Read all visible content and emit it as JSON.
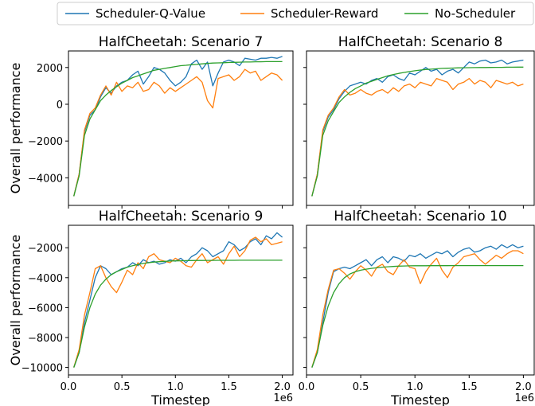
{
  "legend": [
    {
      "name": "Scheduler-Q-Value",
      "color": "#1f77b4"
    },
    {
      "name": "Scheduler-Reward",
      "color": "#ff7f0e"
    },
    {
      "name": "No-Scheduler",
      "color": "#2ca02c"
    }
  ],
  "chart_data": [
    {
      "type": "line",
      "title": "HalfCheetah: Scenario 7",
      "ylabel": "Overall performance",
      "xlabel": "",
      "xlim": [
        0,
        2.1
      ],
      "ylim": [
        -5500,
        2900
      ],
      "yticks": [
        -4000,
        -2000,
        0,
        2000
      ],
      "ytick_labels": [
        "−4000",
        "−2000",
        "0",
        "2000"
      ],
      "xticks": [
        0.0,
        0.5,
        1.0,
        1.5,
        2.0
      ],
      "xtick_labels": [],
      "x": [
        0.05,
        0.1,
        0.15,
        0.2,
        0.25,
        0.3,
        0.35,
        0.4,
        0.45,
        0.5,
        0.55,
        0.6,
        0.65,
        0.7,
        0.75,
        0.8,
        0.85,
        0.9,
        0.95,
        1.0,
        1.05,
        1.1,
        1.15,
        1.2,
        1.25,
        1.3,
        1.35,
        1.4,
        1.45,
        1.5,
        1.55,
        1.6,
        1.65,
        1.7,
        1.75,
        1.8,
        1.85,
        1.9,
        1.95,
        2.0
      ],
      "series": [
        {
          "name": "Scheduler-Q-Value",
          "values": [
            -5000,
            -3800,
            -1500,
            -600,
            -300,
            400,
            900,
            600,
            1000,
            1200,
            1300,
            1600,
            1800,
            1100,
            1500,
            2000,
            1900,
            1700,
            1300,
            1000,
            1200,
            1500,
            2200,
            2400,
            1900,
            2300,
            1000,
            1700,
            2300,
            2400,
            2300,
            2100,
            2500,
            2450,
            2400,
            2500,
            2500,
            2550,
            2500,
            2600
          ]
        },
        {
          "name": "Scheduler-Reward",
          "values": [
            -5000,
            -3800,
            -1400,
            -500,
            -200,
            500,
            1000,
            500,
            1200,
            700,
            1000,
            900,
            1200,
            700,
            800,
            1200,
            1000,
            600,
            900,
            700,
            900,
            1100,
            1300,
            1500,
            1200,
            200,
            -200,
            1400,
            1500,
            1600,
            1300,
            1500,
            1900,
            1700,
            1800,
            1300,
            1500,
            1700,
            1600,
            1300
          ]
        },
        {
          "name": "No-Scheduler",
          "values": [
            -5000,
            -3900,
            -1700,
            -800,
            -300,
            200,
            500,
            750,
            950,
            1150,
            1300,
            1450,
            1550,
            1650,
            1750,
            1850,
            1900,
            1950,
            2000,
            2050,
            2100,
            2120,
            2150,
            2170,
            2200,
            2220,
            2240,
            2250,
            2260,
            2270,
            2280,
            2290,
            2300,
            2300,
            2310,
            2310,
            2320,
            2320,
            2320,
            2320
          ]
        }
      ]
    },
    {
      "type": "line",
      "title": "HalfCheetah: Scenario 8",
      "ylabel": "",
      "xlabel": "",
      "xlim": [
        0,
        2.1
      ],
      "ylim": [
        -5500,
        2900
      ],
      "yticks": [
        -4000,
        -2000,
        0,
        2000
      ],
      "ytick_labels": [],
      "xticks": [
        0.0,
        0.5,
        1.0,
        1.5,
        2.0
      ],
      "xtick_labels": [],
      "x": [
        0.05,
        0.1,
        0.15,
        0.2,
        0.25,
        0.3,
        0.35,
        0.4,
        0.45,
        0.5,
        0.55,
        0.6,
        0.65,
        0.7,
        0.75,
        0.8,
        0.85,
        0.9,
        0.95,
        1.0,
        1.05,
        1.1,
        1.15,
        1.2,
        1.25,
        1.3,
        1.35,
        1.4,
        1.45,
        1.5,
        1.55,
        1.6,
        1.65,
        1.7,
        1.75,
        1.8,
        1.85,
        1.9,
        1.95,
        2.0
      ],
      "series": [
        {
          "name": "Scheduler-Q-Value",
          "values": [
            -5000,
            -3800,
            -1500,
            -700,
            -300,
            300,
            700,
            1000,
            1100,
            1200,
            1100,
            1300,
            1400,
            1200,
            1500,
            1600,
            1400,
            1300,
            1700,
            1600,
            1800,
            2000,
            1800,
            1900,
            1600,
            1800,
            1900,
            1700,
            2000,
            2300,
            2200,
            2350,
            2400,
            2250,
            2300,
            2400,
            2200,
            2300,
            2350,
            2400
          ]
        },
        {
          "name": "Scheduler-Reward",
          "values": [
            -5000,
            -3800,
            -1400,
            -600,
            -200,
            400,
            800,
            500,
            600,
            800,
            600,
            500,
            700,
            800,
            600,
            900,
            700,
            1000,
            1100,
            900,
            1200,
            1100,
            1000,
            1400,
            1300,
            1200,
            800,
            1100,
            1200,
            1400,
            1100,
            1300,
            1200,
            900,
            1300,
            1200,
            1100,
            1200,
            1000,
            1100
          ]
        },
        {
          "name": "No-Scheduler",
          "values": [
            -5000,
            -3900,
            -1700,
            -900,
            -400,
            100,
            400,
            650,
            850,
            1000,
            1150,
            1250,
            1350,
            1450,
            1550,
            1620,
            1680,
            1730,
            1780,
            1820,
            1860,
            1890,
            1910,
            1930,
            1950,
            1960,
            1970,
            1980,
            1985,
            1990,
            1995,
            2000,
            2000,
            2005,
            2010,
            2010,
            2015,
            2015,
            2020,
            2020
          ]
        }
      ]
    },
    {
      "type": "line",
      "title": "HalfCheetah: Scenario 9",
      "ylabel": "Overall performance",
      "xlabel": "Timestep",
      "x_offset_label": "1e6",
      "xlim": [
        0,
        2.1
      ],
      "ylim": [
        -10500,
        -500
      ],
      "yticks": [
        -10000,
        -8000,
        -6000,
        -4000,
        -2000
      ],
      "ytick_labels": [
        "−10000",
        "−8000",
        "−6000",
        "−4000",
        "−2000"
      ],
      "xticks": [
        0.0,
        0.5,
        1.0,
        1.5,
        2.0
      ],
      "xtick_labels": [
        "0.0",
        "0.5",
        "1.0",
        "1.5",
        "2.0"
      ],
      "x": [
        0.05,
        0.1,
        0.15,
        0.2,
        0.25,
        0.3,
        0.35,
        0.4,
        0.45,
        0.5,
        0.55,
        0.6,
        0.65,
        0.7,
        0.75,
        0.8,
        0.85,
        0.9,
        0.95,
        1.0,
        1.05,
        1.1,
        1.15,
        1.2,
        1.25,
        1.3,
        1.35,
        1.4,
        1.45,
        1.5,
        1.55,
        1.6,
        1.65,
        1.7,
        1.75,
        1.8,
        1.85,
        1.9,
        1.95,
        2.0
      ],
      "series": [
        {
          "name": "Scheduler-Q-Value",
          "values": [
            -10000,
            -9000,
            -7000,
            -5500,
            -4000,
            -3200,
            -3400,
            -3800,
            -3600,
            -3400,
            -3300,
            -3000,
            -3200,
            -2800,
            -3000,
            -2900,
            -3100,
            -3000,
            -2800,
            -2900,
            -2700,
            -3000,
            -2600,
            -2400,
            -2000,
            -2200,
            -2600,
            -2400,
            -2200,
            -1600,
            -1800,
            -2200,
            -2000,
            -1600,
            -1400,
            -1800,
            -1200,
            -1400,
            -1000,
            -1300
          ]
        },
        {
          "name": "Scheduler-Reward",
          "values": [
            -10000,
            -8800,
            -6500,
            -5000,
            -3400,
            -3200,
            -4000,
            -4600,
            -5000,
            -4300,
            -3500,
            -3800,
            -3000,
            -3400,
            -2600,
            -2400,
            -2800,
            -2900,
            -3000,
            -2700,
            -2900,
            -3200,
            -3300,
            -2800,
            -2400,
            -3000,
            -2800,
            -2600,
            -3100,
            -2400,
            -1900,
            -2600,
            -2200,
            -1500,
            -1300,
            -1600,
            -1400,
            -1800,
            -1700,
            -1600
          ]
        },
        {
          "name": "No-Scheduler",
          "values": [
            -10000,
            -9000,
            -7300,
            -6000,
            -5100,
            -4500,
            -4100,
            -3800,
            -3600,
            -3450,
            -3300,
            -3200,
            -3120,
            -3050,
            -3000,
            -2960,
            -2930,
            -2910,
            -2890,
            -2880,
            -2870,
            -2860,
            -2855,
            -2850,
            -2850,
            -2845,
            -2845,
            -2840,
            -2840,
            -2840,
            -2840,
            -2835,
            -2835,
            -2835,
            -2835,
            -2835,
            -2835,
            -2835,
            -2835,
            -2835
          ]
        }
      ]
    },
    {
      "type": "line",
      "title": "HalfCheetah: Scenario 10",
      "ylabel": "",
      "xlabel": "Timestep",
      "x_offset_label": "1e6",
      "xlim": [
        0,
        2.1
      ],
      "ylim": [
        -10500,
        -500
      ],
      "yticks": [
        -10000,
        -8000,
        -6000,
        -4000,
        -2000
      ],
      "ytick_labels": [],
      "xticks": [
        0.0,
        0.5,
        1.0,
        1.5,
        2.0
      ],
      "xtick_labels": [
        "0.0",
        "0.5",
        "1.0",
        "1.5",
        "2.0"
      ],
      "x": [
        0.05,
        0.1,
        0.15,
        0.2,
        0.25,
        0.3,
        0.35,
        0.4,
        0.45,
        0.5,
        0.55,
        0.6,
        0.65,
        0.7,
        0.75,
        0.8,
        0.85,
        0.9,
        0.95,
        1.0,
        1.05,
        1.1,
        1.15,
        1.2,
        1.25,
        1.3,
        1.35,
        1.4,
        1.45,
        1.5,
        1.55,
        1.6,
        1.65,
        1.7,
        1.75,
        1.8,
        1.85,
        1.9,
        1.95,
        2.0
      ],
      "series": [
        {
          "name": "Scheduler-Q-Value",
          "values": [
            -10000,
            -9000,
            -7000,
            -5000,
            -3600,
            -3400,
            -3300,
            -3400,
            -3200,
            -3000,
            -2800,
            -3200,
            -2800,
            -2600,
            -3000,
            -2600,
            -2700,
            -2900,
            -2500,
            -2600,
            -2400,
            -2700,
            -2500,
            -2300,
            -2400,
            -2200,
            -2600,
            -2300,
            -2100,
            -2000,
            -2300,
            -2200,
            -2000,
            -1900,
            -2100,
            -1800,
            -2000,
            -1800,
            -2000,
            -1900
          ]
        },
        {
          "name": "Scheduler-Reward",
          "values": [
            -10000,
            -8800,
            -6500,
            -4800,
            -3500,
            -3400,
            -3700,
            -4100,
            -3600,
            -3200,
            -3500,
            -3900,
            -3300,
            -3100,
            -3600,
            -3800,
            -3200,
            -2800,
            -3300,
            -3400,
            -4400,
            -3600,
            -3100,
            -2700,
            -3500,
            -4000,
            -3300,
            -3000,
            -2600,
            -2500,
            -2400,
            -2800,
            -3100,
            -2800,
            -2500,
            -2700,
            -2400,
            -2200,
            -2200,
            -2400
          ]
        },
        {
          "name": "No-Scheduler",
          "values": [
            -10000,
            -9000,
            -7200,
            -5900,
            -5000,
            -4400,
            -4000,
            -3750,
            -3600,
            -3500,
            -3430,
            -3380,
            -3340,
            -3300,
            -3270,
            -3250,
            -3230,
            -3220,
            -3210,
            -3200,
            -3200,
            -3200,
            -3195,
            -3195,
            -3195,
            -3195,
            -3190,
            -3190,
            -3190,
            -3190,
            -3190,
            -3190,
            -3190,
            -3190,
            -3190,
            -3190,
            -3190,
            -3190,
            -3190,
            -3190
          ]
        }
      ]
    }
  ]
}
